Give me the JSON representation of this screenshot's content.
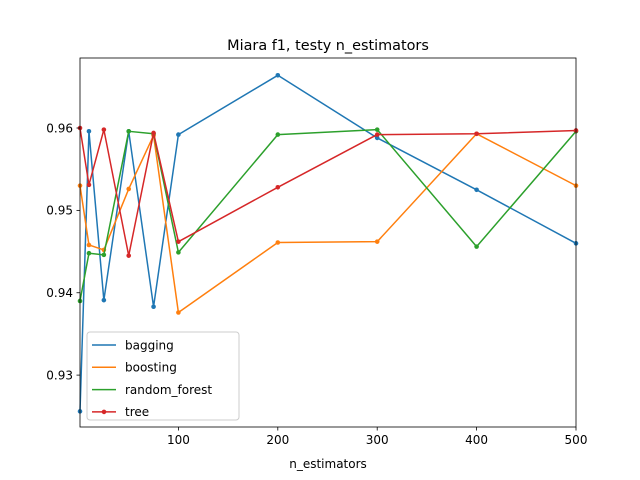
{
  "chart_data": {
    "type": "line",
    "title": "Miara f1, testy n_estimators",
    "xlabel": "n_estimators",
    "ylabel": "",
    "xlim": [
      1,
      500
    ],
    "ylim": [
      0.9237,
      0.9685
    ],
    "xticks": [
      100,
      200,
      300,
      400,
      500
    ],
    "xtick_labels": [
      "100",
      "200",
      "300",
      "400",
      "500"
    ],
    "yticks": [
      0.93,
      0.94,
      0.95,
      0.96
    ],
    "ytick_labels": [
      "0.93",
      "0.94",
      "0.95",
      "0.96"
    ],
    "grid": false,
    "legend_position": "lower-left",
    "x": [
      1,
      10,
      25,
      50,
      75,
      100,
      200,
      300,
      400,
      500
    ],
    "series": [
      {
        "name": "bagging",
        "color": "#1f77b4",
        "marker": false,
        "values": [
          0.9256,
          0.9596,
          0.9391,
          0.9596,
          0.9383,
          0.9592,
          0.9664,
          0.9588,
          0.9525,
          0.946
        ]
      },
      {
        "name": "boosting",
        "color": "#ff7f0e",
        "marker": false,
        "values": [
          0.953,
          0.9458,
          0.9452,
          0.9526,
          0.9591,
          0.9376,
          0.9461,
          0.9462,
          0.9593,
          0.953
        ]
      },
      {
        "name": "random_forest",
        "color": "#2ca02c",
        "marker": false,
        "values": [
          0.939,
          0.9448,
          0.9446,
          0.9596,
          0.9593,
          0.9449,
          0.9592,
          0.9598,
          0.9456,
          0.9596
        ]
      },
      {
        "name": "tree",
        "color": "#d62728",
        "marker": true,
        "values": [
          0.96,
          0.9531,
          0.9598,
          0.9445,
          0.9594,
          0.9462,
          0.9528,
          0.9592,
          0.9593,
          0.9597
        ]
      }
    ]
  }
}
